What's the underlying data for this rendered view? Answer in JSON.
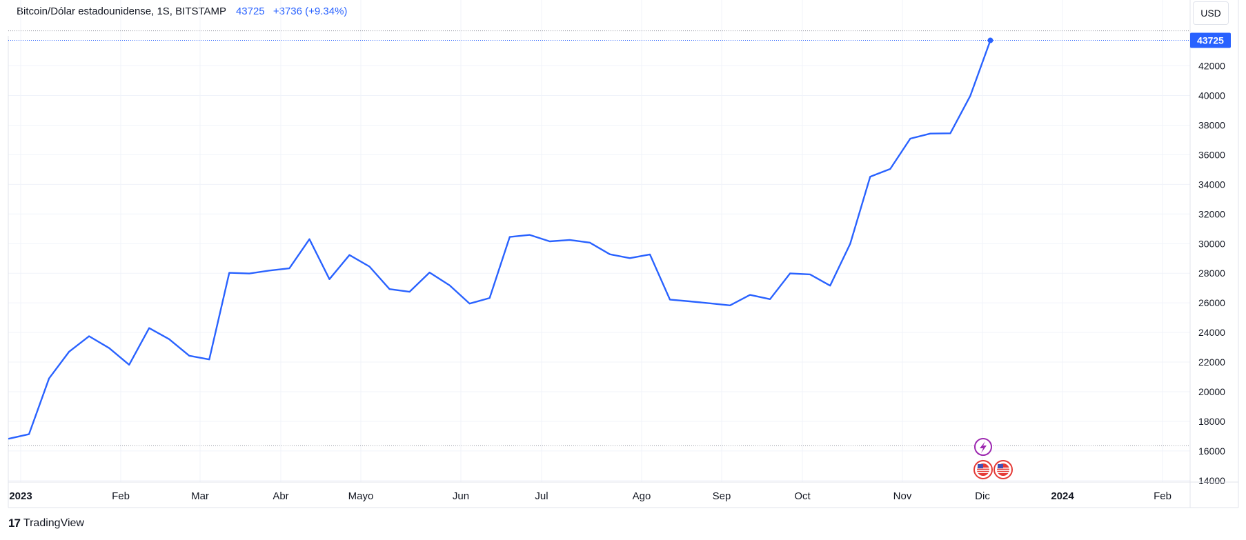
{
  "legend": {
    "symbol": "Bitcoin/Dólar estadounidense, 1S, BITSTAMP",
    "price": "43725",
    "change": "+3736 (+9.34%)"
  },
  "currency_button": "USD",
  "footer": {
    "brand": "TradingView",
    "brand_mark": "17"
  },
  "colors": {
    "line": "#2962ff",
    "grid": "#f0f3fa",
    "axis_text": "#131722",
    "price_tag": "#2962ff"
  },
  "icons": [
    "lightning-icon",
    "us-flag-icon",
    "us-flag-icon"
  ],
  "chart_data": {
    "type": "line",
    "title": "",
    "xlabel": "",
    "ylabel": "",
    "series": [
      {
        "name": "",
        "values": [
          16830,
          17130,
          20900,
          22700,
          23750,
          22950,
          21820,
          24300,
          23550,
          22430,
          22180,
          28030,
          27980,
          28180,
          28330,
          30300,
          27600,
          29230,
          28450,
          26930,
          26750,
          28050,
          27180,
          25950,
          26330,
          30450,
          30590,
          30150,
          30250,
          30070,
          29280,
          29020,
          29270,
          26220,
          26100,
          25970,
          25830,
          26540,
          26250,
          27990,
          27920,
          27160,
          29990,
          34520,
          35040,
          37090,
          37430,
          37450,
          39980,
          43725
        ]
      }
    ],
    "ylim": [
      13900,
      46450
    ],
    "y_ticks": [
      "42000",
      "40000",
      "38000",
      "36000",
      "34000",
      "32000",
      "30000",
      "28000",
      "26000",
      "24000",
      "22000",
      "20000",
      "18000",
      "16000",
      "14000"
    ],
    "x_ticks": [
      {
        "label": "2023",
        "bold": true
      },
      {
        "label": "Feb",
        "bold": false
      },
      {
        "label": "Mar",
        "bold": false
      },
      {
        "label": "Abr",
        "bold": false
      },
      {
        "label": "Mayo",
        "bold": false
      },
      {
        "label": "Jun",
        "bold": false
      },
      {
        "label": "Jul",
        "bold": false
      },
      {
        "label": "Ago",
        "bold": false
      },
      {
        "label": "Sep",
        "bold": false
      },
      {
        "label": "Oct",
        "bold": false
      },
      {
        "label": "Nov",
        "bold": false
      },
      {
        "label": "Dic",
        "bold": false
      },
      {
        "label": "2024",
        "bold": true
      },
      {
        "label": "Feb",
        "bold": false
      }
    ],
    "last_price_label": "43725",
    "range_high": 44370,
    "range_low": 16360,
    "grid": true
  }
}
